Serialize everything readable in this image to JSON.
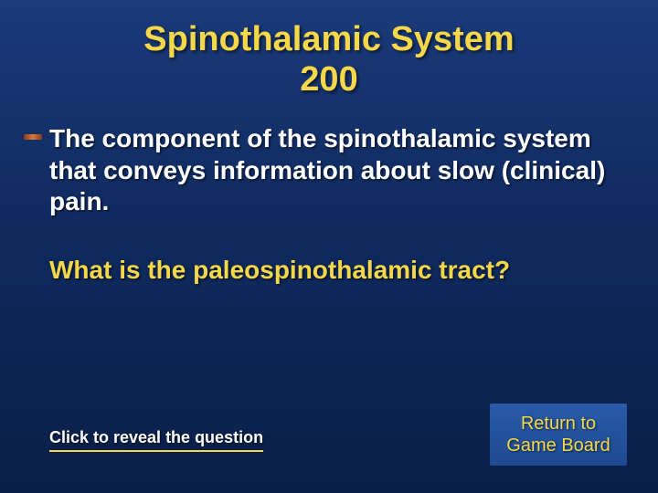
{
  "colors": {
    "background_gradient": [
      "#1a3a7a",
      "#0f2a5e",
      "#0a1f48"
    ],
    "title_color": "#f5d84a",
    "clue_color": "#ffffff",
    "answer_color": "#f5d84a",
    "bullet_gradient": [
      "#8a3a1a",
      "#d87a3a",
      "#8a3a1a"
    ],
    "underline_color": "#f5d84a",
    "return_button_bg": [
      "#2a5aa8",
      "#1e4a90"
    ],
    "return_button_text": "#f5d84a",
    "reveal_text": "#ffffff"
  },
  "typography": {
    "title_fontsize": 38,
    "clue_fontsize": 28,
    "answer_fontsize": 28,
    "reveal_fontsize": 18,
    "return_fontsize": 20,
    "title_weight": "bold",
    "clue_weight": "bold",
    "answer_weight": "bold",
    "reveal_weight": "bold"
  },
  "title": {
    "line1": "Spinothalamic System",
    "line2": "200"
  },
  "clue": {
    "text": "The component of the spinothalamic system that conveys information about slow (clinical) pain."
  },
  "answer": {
    "text": "What is the paleospinothalamic tract?"
  },
  "buttons": {
    "reveal_label": "Click to reveal the question",
    "return_line1": "Return to",
    "return_line2": "Game Board"
  }
}
